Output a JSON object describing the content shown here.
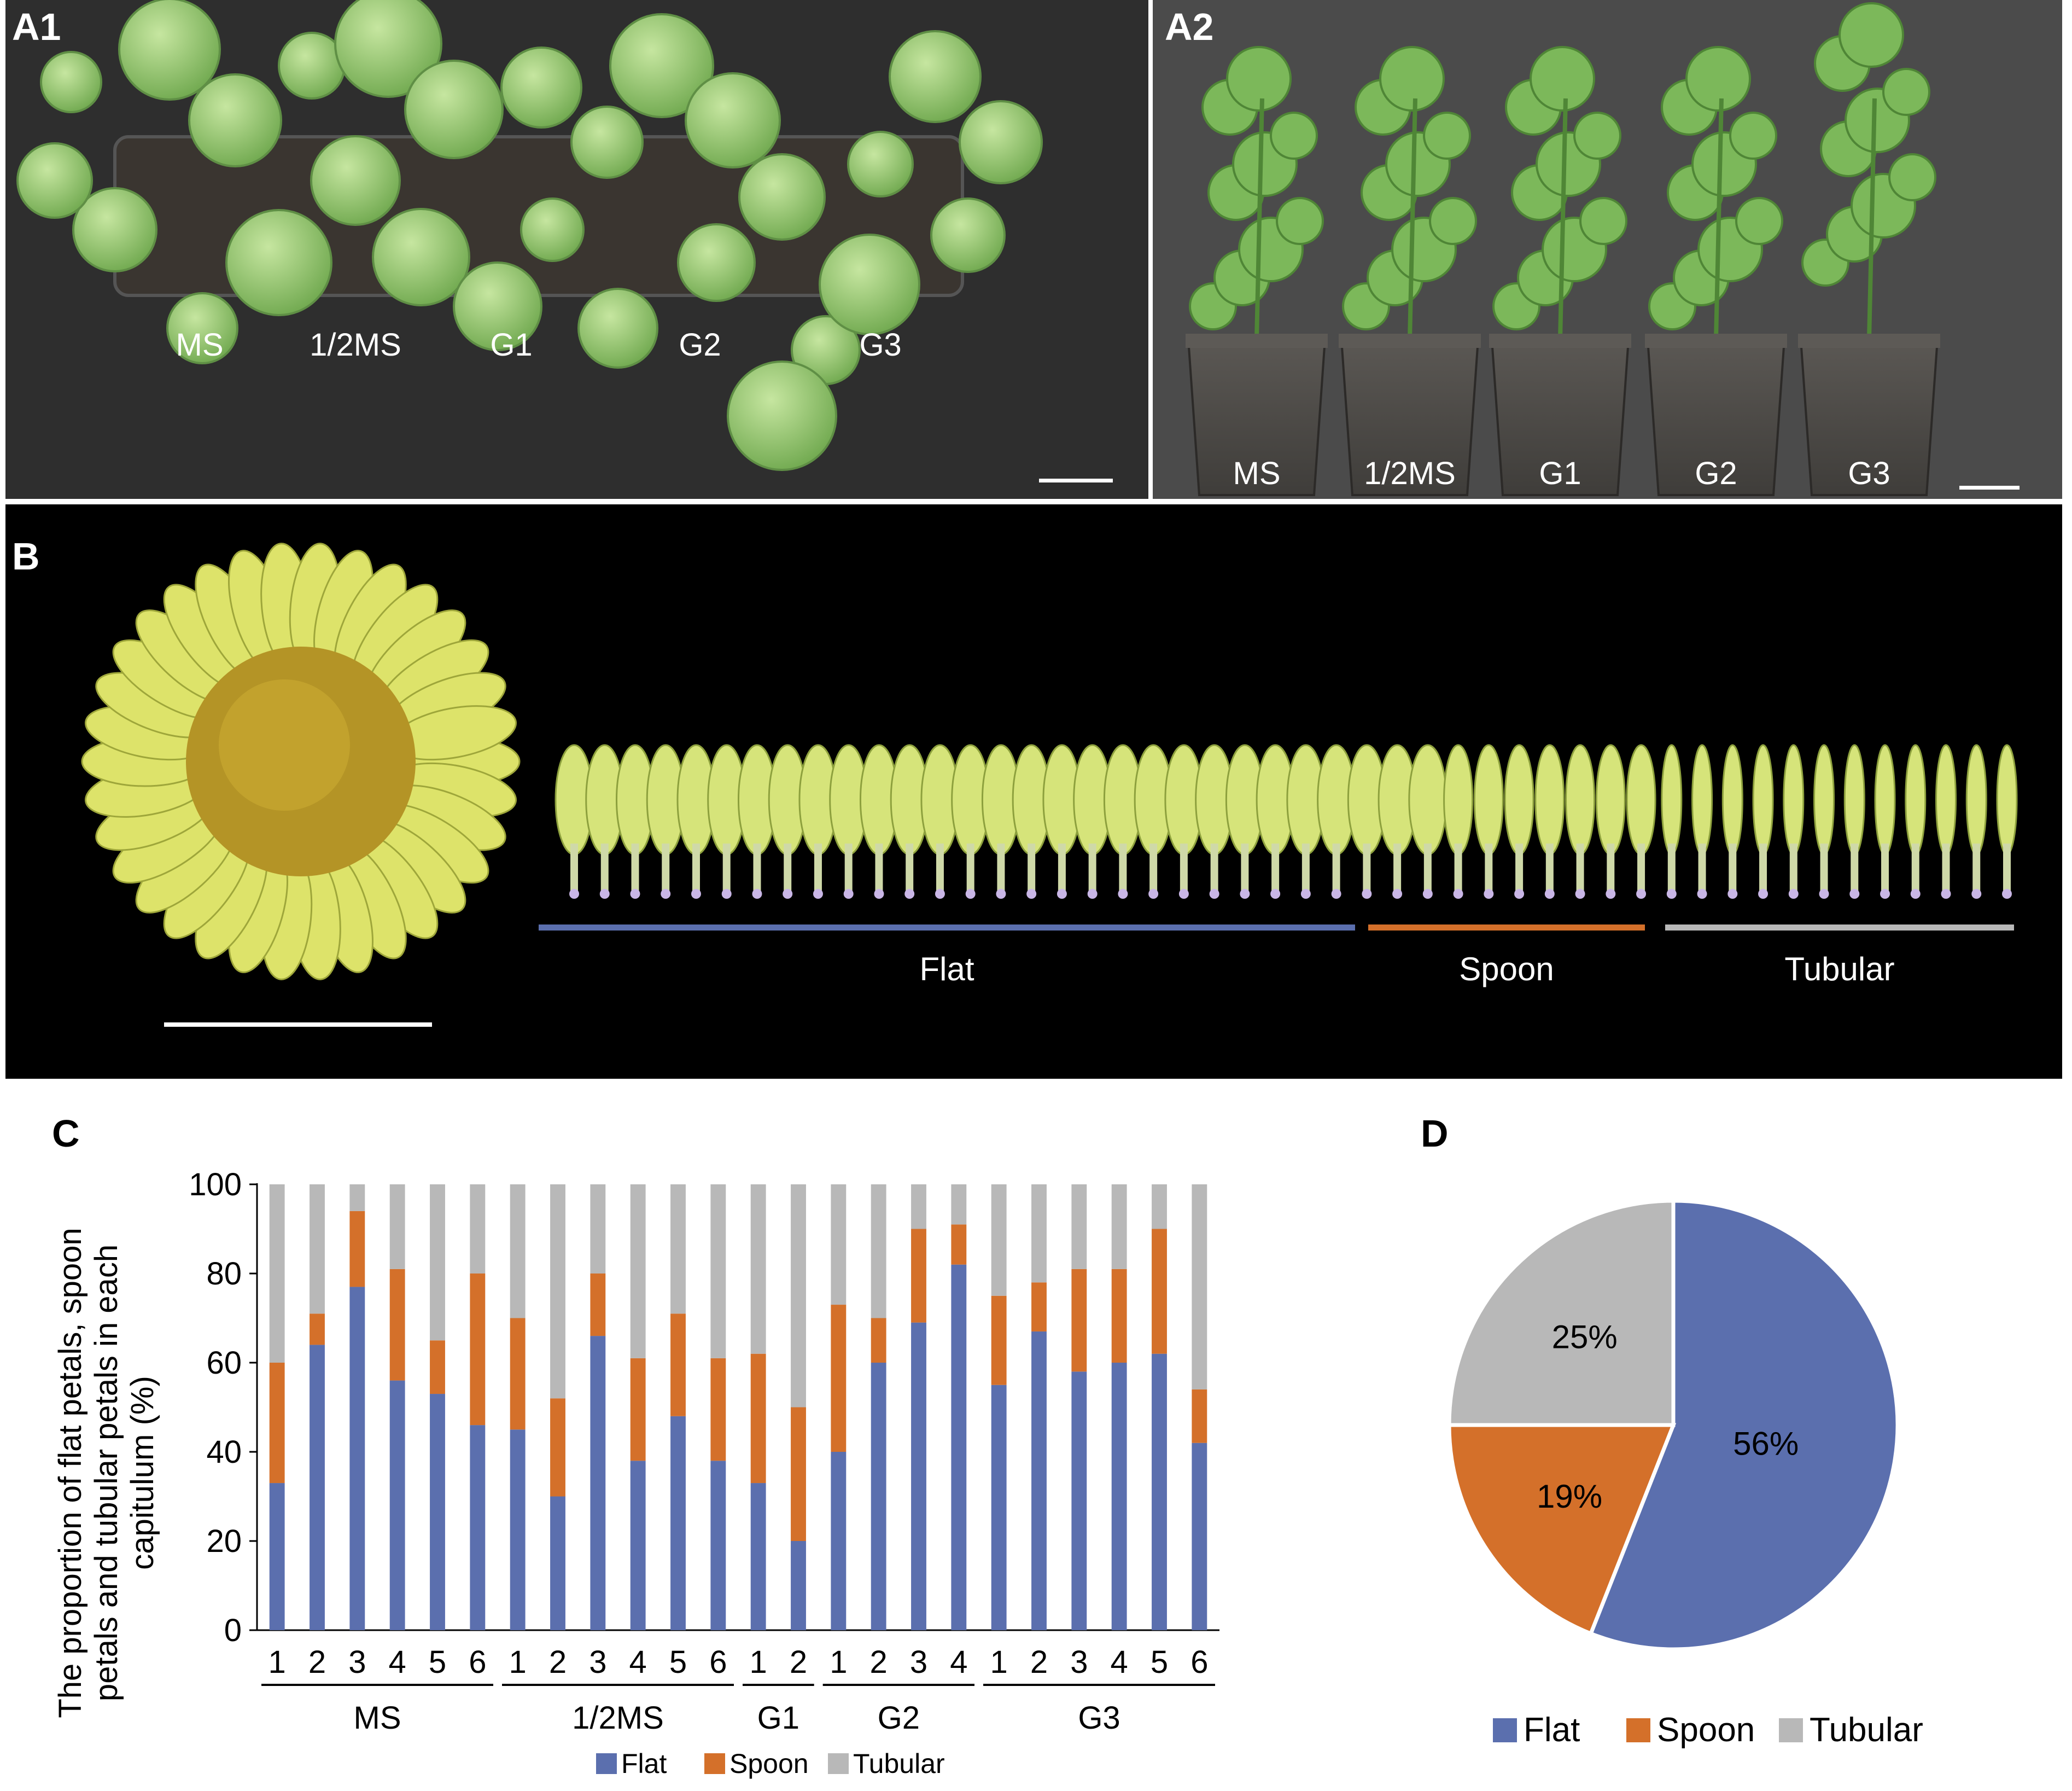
{
  "panel_labels": {
    "a1": "A1",
    "a2": "A2",
    "b": "B",
    "c": "C",
    "d": "D"
  },
  "a1": {
    "pots": [
      "MS",
      "1/2MS",
      "G1",
      "G2",
      "G3"
    ]
  },
  "a2": {
    "pots": [
      "MS",
      "1/2MS",
      "G1",
      "G2",
      "G3"
    ]
  },
  "b": {
    "categories": [
      "Flat",
      "Spoon",
      "Tubular"
    ],
    "colors": {
      "Flat": "#5b6fae",
      "Spoon": "#d4702a",
      "Tubular": "#b8b8b8"
    }
  },
  "chart_data": [
    {
      "type": "bar",
      "stacked": true,
      "ylabel": "The proportion of flat petals, spoon petals and tubular petals in each capitulum (%)",
      "ylabel_lines": [
        "The proportion of flat petals, spoon",
        "petals and tubular petals in each",
        "capitulum (%)"
      ],
      "ylim": [
        0,
        100
      ],
      "yticks": [
        0,
        20,
        40,
        60,
        80,
        100
      ],
      "groups": [
        {
          "name": "MS",
          "labels": [
            "1",
            "2",
            "3",
            "4",
            "5",
            "6"
          ]
        },
        {
          "name": "1/2MS",
          "labels": [
            "1",
            "2",
            "3",
            "4",
            "5",
            "6"
          ]
        },
        {
          "name": "G1",
          "labels": [
            "1",
            "2"
          ]
        },
        {
          "name": "G2",
          "labels": [
            "1",
            "2",
            "3",
            "4"
          ]
        },
        {
          "name": "G3",
          "labels": [
            "1",
            "2",
            "3",
            "4",
            "5",
            "6"
          ]
        }
      ],
      "series": [
        {
          "name": "Flat",
          "color": "#5b6fae",
          "values": [
            33,
            64,
            77,
            56,
            53,
            46,
            45,
            30,
            66,
            38,
            48,
            38,
            33,
            20,
            40,
            60,
            69,
            82,
            55,
            67,
            58,
            60,
            62,
            42
          ]
        },
        {
          "name": "Spoon",
          "color": "#d4702a",
          "values": [
            27,
            7,
            17,
            25,
            12,
            34,
            25,
            22,
            14,
            23,
            23,
            23,
            29,
            30,
            33,
            10,
            21,
            9,
            20,
            11,
            23,
            21,
            28,
            12
          ]
        },
        {
          "name": "Tubular",
          "color": "#b8b8b8",
          "values": [
            40,
            29,
            6,
            19,
            35,
            20,
            30,
            48,
            20,
            39,
            29,
            39,
            38,
            50,
            27,
            30,
            10,
            9,
            25,
            22,
            19,
            19,
            10,
            46
          ]
        }
      ],
      "legend": [
        "Flat",
        "Spoon",
        "Tubular"
      ],
      "legend_position": "bottom"
    },
    {
      "type": "pie",
      "slices": [
        {
          "name": "Flat",
          "value": 56,
          "label": "56%",
          "color": "#5b6fae"
        },
        {
          "name": "Spoon",
          "value": 19,
          "label": "19%",
          "color": "#d4702a"
        },
        {
          "name": "Tubular",
          "value": 25,
          "label": "25%",
          "color": "#b8b8b8"
        }
      ],
      "legend": [
        "Flat",
        "Spoon",
        "Tubular"
      ],
      "legend_position": "bottom"
    }
  ]
}
